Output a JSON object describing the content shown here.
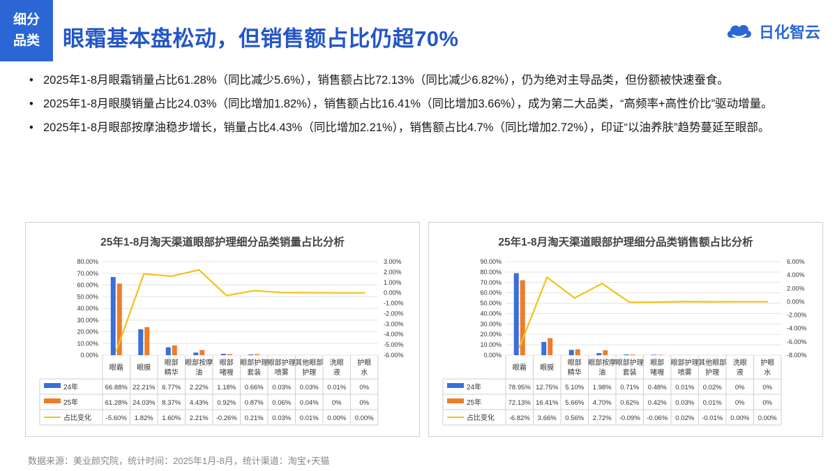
{
  "header": {
    "tag_line1": "细分",
    "tag_line2": "品类",
    "title": "眼霜基本盘松动，但销售额占比仍超70%",
    "logo_text": "日化智云"
  },
  "bullets": [
    "2025年1-8月眼霜销量占比61.28%（同比减少5.6%），销售额占比72.13%（同比减少6.82%），仍为绝对主导品类，但份额被快速蚕食。",
    "2025年1-8月眼膜销量占比24.03%（同比增加1.82%），销售额占比16.41%（同比增加3.66%），成为第二大品类，“高频率+高性价比”驱动增量。",
    "2025年1-8月眼部按摩油稳步增长，销量占比4.43%（同比增加2.21%），销售额占比4.7%（同比增加2.72%），印证“以油养肤”趋势蔓延至眼部。"
  ],
  "source": "数据来源：美业颜究院，统计时间：2025年1月-8月，统计渠道：淘宝+天猫",
  "colors": {
    "s24": "#3a6fd8",
    "s25": "#ee7d2b",
    "chg": "#f2c21b",
    "brand": "#2a67d4"
  },
  "chart_data": [
    {
      "type": "bar",
      "title": "25年1-8月淘天渠道眼部护理细分品类销量占比分析",
      "categories": [
        "眼霜",
        "眼膜",
        "眼部精华",
        "眼部按摩油",
        "眼部啫喱",
        "眼部护理套装",
        "眼部护理喷雾",
        "其他眼部护理",
        "洗眼液",
        "护眼水"
      ],
      "series": [
        {
          "name": "24年",
          "type": "bar",
          "axis": "left",
          "values": [
            66.88,
            22.21,
            6.77,
            2.22,
            1.18,
            0.66,
            0.03,
            0.03,
            0.01,
            0
          ],
          "labels": [
            "66.88%",
            "22.21%",
            "6.77%",
            "2.22%",
            "1.18%",
            "0.66%",
            "0.03%",
            "0.03%",
            "0.01%",
            "0%"
          ]
        },
        {
          "name": "25年",
          "type": "bar",
          "axis": "left",
          "values": [
            61.28,
            24.03,
            8.37,
            4.43,
            0.92,
            0.87,
            0.06,
            0.04,
            0,
            0
          ],
          "labels": [
            "61.28%",
            "24.03%",
            "8.37%",
            "4.43%",
            "0.92%",
            "0.87%",
            "0.06%",
            "0.04%",
            "0%",
            "0%"
          ]
        },
        {
          "name": "占比变化",
          "type": "line",
          "axis": "right",
          "values": [
            -5.6,
            1.82,
            1.6,
            2.21,
            -0.26,
            0.21,
            0.03,
            0.01,
            0.0,
            0.0
          ],
          "labels": [
            "-5.60%",
            "1.82%",
            "1.60%",
            "2.21%",
            "-0.26%",
            "0.21%",
            "0.03%",
            "0.01%",
            "0.00%",
            "0.00%"
          ]
        }
      ],
      "y_left_ticks": [
        "80.00%",
        "70.00%",
        "60.00%",
        "50.00%",
        "40.00%",
        "30.00%",
        "20.00%",
        "10.00%",
        "0.00%"
      ],
      "y_right_ticks": [
        "3.00%",
        "2.00%",
        "1.00%",
        "0.00%",
        "-1.00%",
        "-2.00%",
        "-3.00%",
        "-4.00%",
        "-5.00%",
        "-6.00%"
      ],
      "ylim_left": [
        0,
        80
      ],
      "ylim_right": [
        -6,
        3
      ],
      "grid": true,
      "legend": "table-below"
    },
    {
      "type": "bar",
      "title": "25年1-8月淘天渠道眼部护理细分品类销售额占比分析",
      "categories": [
        "眼霜",
        "眼膜",
        "眼部精华",
        "眼部按摩油",
        "眼部护理套装",
        "眼部啫喱",
        "眼部护理喷雾",
        "其他眼部护理",
        "洗眼液",
        "护眼水"
      ],
      "series": [
        {
          "name": "24年",
          "type": "bar",
          "axis": "left",
          "values": [
            78.95,
            12.75,
            5.1,
            1.98,
            0.71,
            0.48,
            0.01,
            0.02,
            0,
            0
          ],
          "labels": [
            "78.95%",
            "12.75%",
            "5.10%",
            "1.98%",
            "0.71%",
            "0.48%",
            "0.01%",
            "0.02%",
            "0%",
            "0%"
          ]
        },
        {
          "name": "25年",
          "type": "bar",
          "axis": "left",
          "values": [
            72.13,
            16.41,
            5.66,
            4.7,
            0.62,
            0.42,
            0.03,
            0.01,
            0,
            0
          ],
          "labels": [
            "72.13%",
            "16.41%",
            "5.66%",
            "4.70%",
            "0.62%",
            "0.42%",
            "0.03%",
            "0.01%",
            "0%",
            "0%"
          ]
        },
        {
          "name": "占比变化",
          "type": "line",
          "axis": "right",
          "values": [
            -6.82,
            3.66,
            0.56,
            2.72,
            -0.09,
            -0.06,
            0.02,
            -0.01,
            0.0,
            0.0
          ],
          "labels": [
            "-6.82%",
            "3.66%",
            "0.56%",
            "2.72%",
            "-0.09%",
            "-0.06%",
            "0.02%",
            "-0.01%",
            "0.00%",
            "0.00%"
          ]
        }
      ],
      "y_left_ticks": [
        "90.00%",
        "80.00%",
        "70.00%",
        "60.00%",
        "50.00%",
        "40.00%",
        "30.00%",
        "20.00%",
        "10.00%",
        "0.00%"
      ],
      "y_right_ticks": [
        "6.00%",
        "4.00%",
        "2.00%",
        "0.00%",
        "-2.00%",
        "-4.00%",
        "-6.00%",
        "-8.00%"
      ],
      "ylim_left": [
        0,
        90
      ],
      "ylim_right": [
        -8,
        6
      ],
      "grid": true,
      "legend": "table-below"
    }
  ]
}
